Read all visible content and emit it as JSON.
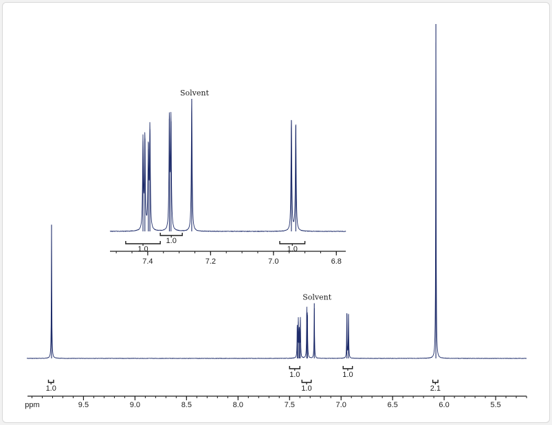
{
  "chart_data": [
    {
      "type": "line",
      "axis_label": "ppm",
      "x_direction": "descending",
      "xlim": [
        10.05,
        5.2
      ],
      "ticks": [
        {
          "value": 9.5,
          "label": "9.5"
        },
        {
          "value": 9.0,
          "label": "9.0"
        },
        {
          "value": 8.5,
          "label": "8.5"
        },
        {
          "value": 8.0,
          "label": "8.0"
        },
        {
          "value": 7.5,
          "label": "7.5"
        },
        {
          "value": 7.0,
          "label": "7.0"
        },
        {
          "value": 6.5,
          "label": "6.5"
        },
        {
          "value": 6.0,
          "label": "6.0"
        },
        {
          "value": 5.5,
          "label": "5.5"
        }
      ],
      "peaks": [
        {
          "ppm": 9.81,
          "height": 0.4
        },
        {
          "ppm": 7.425,
          "height": 0.1
        },
        {
          "ppm": 7.415,
          "height": 0.11
        },
        {
          "ppm": 7.405,
          "height": 0.09
        },
        {
          "ppm": 7.395,
          "height": 0.115
        },
        {
          "ppm": 7.333,
          "height": 0.135
        },
        {
          "ppm": 7.327,
          "height": 0.13
        },
        {
          "ppm": 7.26,
          "height": 0.165
        },
        {
          "ppm": 6.944,
          "height": 0.135
        },
        {
          "ppm": 6.928,
          "height": 0.13
        },
        {
          "ppm": 6.08,
          "height": 1.0
        }
      ],
      "integrations": [
        {
          "from": 9.84,
          "to": 9.79,
          "value": "1.0",
          "row": 1
        },
        {
          "from": 7.5,
          "to": 7.4,
          "value": "1.0",
          "row": 0
        },
        {
          "from": 7.38,
          "to": 7.29,
          "value": "1.0",
          "row": 1
        },
        {
          "from": 6.98,
          "to": 6.89,
          "value": "1.0",
          "row": 0
        },
        {
          "from": 6.11,
          "to": 6.06,
          "value": "2.1",
          "row": 1
        }
      ],
      "annotations": [
        {
          "text": "Solvent",
          "ppm": 7.26
        }
      ]
    },
    {
      "type": "line",
      "inset": true,
      "x_direction": "descending",
      "xlim": [
        7.52,
        6.77
      ],
      "ticks": [
        {
          "value": 7.4,
          "label": "7.4"
        },
        {
          "value": 7.2,
          "label": "7.2"
        },
        {
          "value": 7.0,
          "label": "7.0"
        },
        {
          "value": 6.8,
          "label": "6.8"
        }
      ],
      "peaks": [
        {
          "ppm": 7.415,
          "height": 0.68
        },
        {
          "ppm": 7.409,
          "height": 0.7
        },
        {
          "ppm": 7.398,
          "height": 0.62
        },
        {
          "ppm": 7.393,
          "height": 0.77
        },
        {
          "ppm": 7.331,
          "height": 0.85
        },
        {
          "ppm": 7.326,
          "height": 0.83
        },
        {
          "ppm": 7.26,
          "height": 1.0
        },
        {
          "ppm": 6.943,
          "height": 0.84
        },
        {
          "ppm": 6.929,
          "height": 0.8
        }
      ],
      "integrations": [
        {
          "from": 7.47,
          "to": 7.36,
          "value": "1.0",
          "row": 0
        },
        {
          "from": 7.36,
          "to": 7.29,
          "value": "1.0",
          "row": 1
        },
        {
          "from": 6.98,
          "to": 6.9,
          "value": "1.0",
          "row": 0
        }
      ],
      "annotations": [
        {
          "text": "Solvent",
          "ppm": 7.26
        }
      ]
    }
  ],
  "style": {
    "spectrum_color": "#1f2d6b",
    "axis_color": "#1a1a1a",
    "integration_color": "#1a1a1a",
    "frame_background": "#ffffff"
  }
}
